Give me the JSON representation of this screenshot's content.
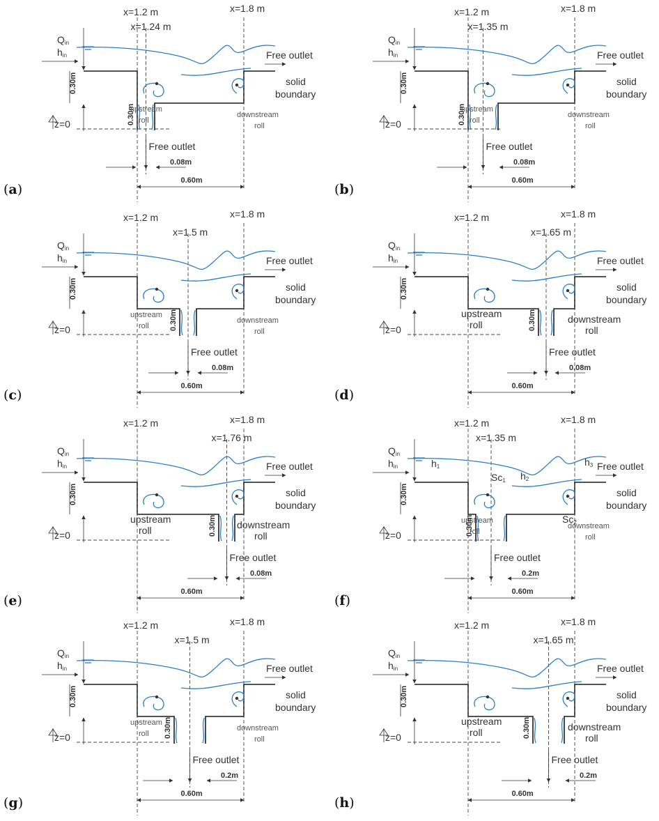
{
  "labels": {
    "q_in": "Q",
    "q_in_sub": "in",
    "h_in": "h",
    "h_in_sub": "in",
    "z0": "z=0",
    "free_outlet": "Free outlet",
    "solid": "solid",
    "boundary": "boundary",
    "upstream": "upstream",
    "downstream": "downstream",
    "roll": "roll",
    "x12": "x=1.2 m",
    "x18": "x=1.8 m",
    "dim_030": "0.30m",
    "dim_060": "0.60m",
    "h1": "h",
    "h1_sub": "1",
    "h2": "h",
    "h2_sub": "2",
    "h3": "h",
    "h3_sub": "3",
    "sc1": "Sc",
    "sc1_sub": "1",
    "sc2": "Sc",
    "sc2_sub": "2"
  },
  "panels": [
    {
      "id": "a",
      "label": "a",
      "slot_x": "x=1.24 m",
      "slot_width": "0.08m",
      "large_labels": false
    },
    {
      "id": "b",
      "label": "b",
      "slot_x": "x=1.35 m",
      "slot_width": "0.08m",
      "large_labels": false
    },
    {
      "id": "c",
      "label": "c",
      "slot_x": "x=1.5 m",
      "slot_width": "0.08m",
      "large_labels": false
    },
    {
      "id": "d",
      "label": "d",
      "slot_x": "x=1.65 m",
      "slot_width": "0.08m",
      "large_labels": true
    },
    {
      "id": "e",
      "label": "e",
      "slot_x": "x=1.76 m",
      "slot_width": "0.08m",
      "large_labels": true
    },
    {
      "id": "f",
      "label": "f",
      "slot_x": "x=1.35 m",
      "slot_width": "0.2m",
      "large_labels": false,
      "annotations": true
    },
    {
      "id": "g",
      "label": "g",
      "slot_x": "x=1.5 m",
      "slot_width": "0.2m",
      "large_labels": false
    },
    {
      "id": "h",
      "label": "h",
      "slot_x": "x=1.65 m",
      "slot_width": "0.2m",
      "large_labels": true
    }
  ]
}
